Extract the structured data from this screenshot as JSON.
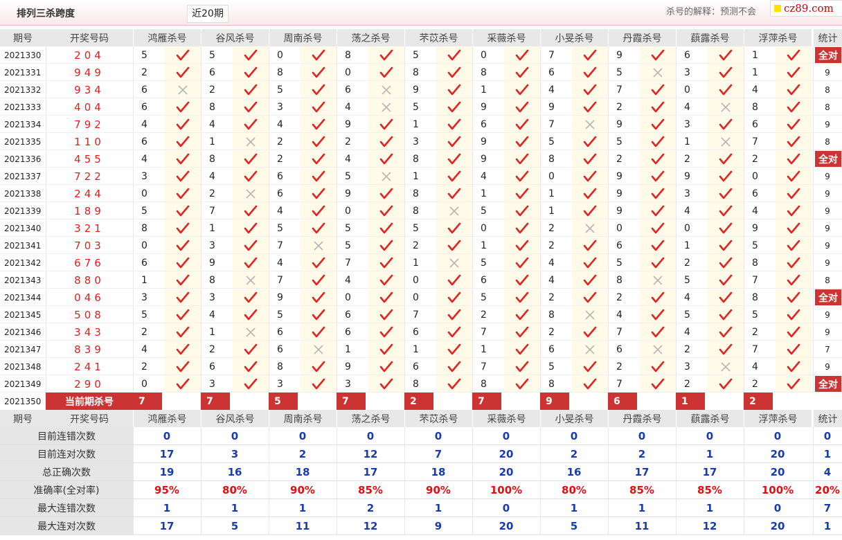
{
  "header": {
    "title": "排列三杀跨度",
    "range": "近20期",
    "explain": "杀号的解释：预测不会",
    "logo": "cz89.com"
  },
  "columns": [
    "期号",
    "开奖号码",
    "鸿雁杀号",
    "谷风杀号",
    "周南杀号",
    "荡之杀号",
    "芣苡杀号",
    "采薇杀号",
    "小旻杀号",
    "丹霞杀号",
    "蕻露杀号",
    "浮萍杀号",
    "统计"
  ],
  "rows": [
    {
      "period": "2021330",
      "drawn": "204",
      "kills": [
        5,
        5,
        0,
        8,
        5,
        0,
        7,
        9,
        6,
        1
      ],
      "ok": [
        1,
        1,
        1,
        1,
        1,
        1,
        1,
        1,
        1,
        1
      ],
      "stat": "全对"
    },
    {
      "period": "2021331",
      "drawn": "949",
      "kills": [
        2,
        6,
        8,
        0,
        8,
        8,
        6,
        5,
        3,
        1
      ],
      "ok": [
        1,
        1,
        1,
        1,
        1,
        1,
        1,
        0,
        1,
        1
      ],
      "stat": "9"
    },
    {
      "period": "2021332",
      "drawn": "934",
      "kills": [
        6,
        2,
        5,
        6,
        9,
        1,
        4,
        7,
        0,
        4
      ],
      "ok": [
        0,
        1,
        1,
        0,
        1,
        1,
        1,
        1,
        1,
        1
      ],
      "stat": "8"
    },
    {
      "period": "2021333",
      "drawn": "404",
      "kills": [
        6,
        8,
        3,
        4,
        5,
        9,
        9,
        2,
        4,
        8
      ],
      "ok": [
        1,
        1,
        1,
        0,
        1,
        1,
        1,
        1,
        0,
        1
      ],
      "stat": "8"
    },
    {
      "period": "2021334",
      "drawn": "792",
      "kills": [
        4,
        4,
        4,
        9,
        1,
        6,
        7,
        9,
        3,
        6
      ],
      "ok": [
        1,
        1,
        1,
        1,
        1,
        1,
        0,
        1,
        1,
        1
      ],
      "stat": "9"
    },
    {
      "period": "2021335",
      "drawn": "110",
      "kills": [
        6,
        1,
        2,
        2,
        3,
        9,
        5,
        5,
        1,
        7
      ],
      "ok": [
        1,
        0,
        1,
        1,
        1,
        1,
        1,
        1,
        0,
        1
      ],
      "stat": "8"
    },
    {
      "period": "2021336",
      "drawn": "455",
      "kills": [
        4,
        8,
        2,
        4,
        8,
        9,
        8,
        2,
        2,
        2
      ],
      "ok": [
        1,
        1,
        1,
        1,
        1,
        1,
        1,
        1,
        1,
        1
      ],
      "stat": "全对"
    },
    {
      "period": "2021337",
      "drawn": "722",
      "kills": [
        3,
        4,
        6,
        5,
        1,
        4,
        0,
        9,
        9,
        0
      ],
      "ok": [
        1,
        1,
        1,
        0,
        1,
        1,
        1,
        1,
        1,
        1
      ],
      "stat": "9"
    },
    {
      "period": "2021338",
      "drawn": "244",
      "kills": [
        0,
        2,
        6,
        9,
        8,
        1,
        1,
        9,
        3,
        6
      ],
      "ok": [
        1,
        0,
        1,
        1,
        1,
        1,
        1,
        1,
        1,
        1
      ],
      "stat": "9"
    },
    {
      "period": "2021339",
      "drawn": "189",
      "kills": [
        5,
        7,
        4,
        0,
        8,
        5,
        1,
        9,
        4,
        4
      ],
      "ok": [
        1,
        1,
        1,
        1,
        0,
        1,
        1,
        1,
        1,
        1
      ],
      "stat": "9"
    },
    {
      "period": "2021340",
      "drawn": "321",
      "kills": [
        8,
        1,
        5,
        5,
        5,
        0,
        2,
        0,
        0,
        9
      ],
      "ok": [
        1,
        1,
        1,
        1,
        1,
        1,
        0,
        1,
        1,
        1
      ],
      "stat": "9"
    },
    {
      "period": "2021341",
      "drawn": "703",
      "kills": [
        0,
        3,
        7,
        5,
        2,
        1,
        2,
        6,
        1,
        5
      ],
      "ok": [
        1,
        1,
        0,
        1,
        1,
        1,
        1,
        1,
        1,
        1
      ],
      "stat": "9"
    },
    {
      "period": "2021342",
      "drawn": "676",
      "kills": [
        6,
        9,
        4,
        7,
        1,
        5,
        4,
        5,
        2,
        8
      ],
      "ok": [
        1,
        1,
        1,
        1,
        0,
        1,
        1,
        1,
        1,
        1
      ],
      "stat": "9"
    },
    {
      "period": "2021343",
      "drawn": "880",
      "kills": [
        1,
        8,
        7,
        4,
        0,
        6,
        4,
        8,
        5,
        7
      ],
      "ok": [
        1,
        0,
        1,
        1,
        1,
        1,
        1,
        0,
        1,
        1
      ],
      "stat": "8"
    },
    {
      "period": "2021344",
      "drawn": "046",
      "kills": [
        3,
        3,
        9,
        0,
        0,
        5,
        2,
        2,
        4,
        8
      ],
      "ok": [
        1,
        1,
        1,
        1,
        1,
        1,
        1,
        1,
        1,
        1
      ],
      "stat": "全对"
    },
    {
      "period": "2021345",
      "drawn": "508",
      "kills": [
        5,
        4,
        5,
        6,
        7,
        2,
        8,
        4,
        5,
        5
      ],
      "ok": [
        1,
        1,
        1,
        1,
        1,
        1,
        0,
        1,
        1,
        1
      ],
      "stat": "9"
    },
    {
      "period": "2021346",
      "drawn": "343",
      "kills": [
        2,
        1,
        6,
        6,
        6,
        7,
        2,
        7,
        4,
        2
      ],
      "ok": [
        1,
        0,
        1,
        1,
        1,
        1,
        1,
        1,
        1,
        1
      ],
      "stat": "9"
    },
    {
      "period": "2021347",
      "drawn": "839",
      "kills": [
        4,
        2,
        6,
        1,
        1,
        1,
        6,
        6,
        2,
        7
      ],
      "ok": [
        1,
        1,
        0,
        1,
        1,
        1,
        0,
        0,
        1,
        1
      ],
      "stat": "7"
    },
    {
      "period": "2021348",
      "drawn": "241",
      "kills": [
        2,
        6,
        8,
        9,
        6,
        7,
        5,
        2,
        3,
        4
      ],
      "ok": [
        1,
        1,
        1,
        1,
        1,
        1,
        1,
        1,
        0,
        1
      ],
      "stat": "9"
    },
    {
      "period": "2021349",
      "drawn": "290",
      "kills": [
        0,
        3,
        3,
        3,
        8,
        8,
        8,
        7,
        2,
        2
      ],
      "ok": [
        1,
        1,
        1,
        1,
        1,
        1,
        1,
        1,
        1,
        1
      ],
      "stat": "全对"
    }
  ],
  "current": {
    "period": "2021350",
    "label": "当前期杀号",
    "kills": [
      "7",
      "7",
      "5",
      "7",
      "2",
      "7",
      "9",
      "6",
      "1",
      "2"
    ]
  },
  "summary": [
    {
      "label": "目前连错次数",
      "values": [
        "0",
        "0",
        "0",
        "0",
        "0",
        "0",
        "0",
        "0",
        "0",
        "0"
      ],
      "stat": "0",
      "red": false
    },
    {
      "label": "目前连对次数",
      "values": [
        "17",
        "3",
        "2",
        "12",
        "7",
        "20",
        "2",
        "2",
        "1",
        "20"
      ],
      "stat": "1",
      "red": false
    },
    {
      "label": "总正确次数",
      "values": [
        "19",
        "16",
        "18",
        "17",
        "18",
        "20",
        "16",
        "17",
        "17",
        "20"
      ],
      "stat": "4",
      "red": false
    },
    {
      "label": "准确率(全对率)",
      "values": [
        "95%",
        "80%",
        "90%",
        "85%",
        "90%",
        "100%",
        "80%",
        "85%",
        "85%",
        "100%"
      ],
      "stat": "20%",
      "red": true
    },
    {
      "label": "最大连错次数",
      "values": [
        "1",
        "1",
        "1",
        "2",
        "1",
        "0",
        "1",
        "1",
        "1",
        "0"
      ],
      "stat": "7",
      "red": false
    },
    {
      "label": "最大连对次数",
      "values": [
        "17",
        "5",
        "11",
        "12",
        "9",
        "20",
        "5",
        "11",
        "12",
        "20"
      ],
      "stat": "1",
      "red": false
    }
  ],
  "colors": {
    "accent": "#cc3333",
    "check": "#e02424",
    "cross": "#b5b5b5",
    "blue": "#1a3ab0",
    "cellbg": "#fffbe8"
  },
  "icons": {
    "ok": "check-icon",
    "miss": "cross-icon"
  }
}
